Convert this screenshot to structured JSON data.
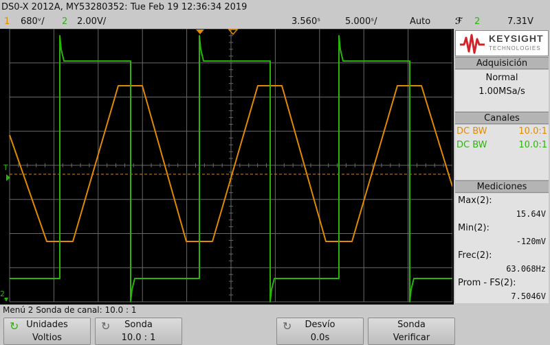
{
  "title_bar": {
    "text": "DS0-X 2012A, MY53280352: Tue Feb 19 12:36:34 2019"
  },
  "scale_bar": {
    "ch1_num": "1",
    "ch1_scale": "680ᵛ/",
    "ch2_num": "2",
    "ch2_scale": "2.00V/",
    "time_delay": "3.560ˢ",
    "time_scale": "5.000ˢ/",
    "trigger_mode": "Auto",
    "trigger_slope": "ℱ",
    "trigger_source": "2",
    "trigger_level": "7.31V"
  },
  "side_panel": {
    "logo_text": "KEYSIGHT",
    "logo_sub": "TECHNOLOGIES",
    "acquisition_head": "Adquisición",
    "acquisition_mode": "Normal",
    "acquisition_rate": "1.00MSa/s",
    "channels_head": "Canales",
    "channels": [
      {
        "label": "DC BW",
        "probe": "10.0:1",
        "color": "#e38a00"
      },
      {
        "label": "DC BW",
        "probe": "10.0:1",
        "color": "#2ab40a"
      }
    ],
    "measurements_head": "Mediciones",
    "measurements": [
      {
        "label": "Max(2):",
        "value": "15.64V"
      },
      {
        "label": "Min(2):",
        "value": "-120mV"
      },
      {
        "label": "Frec(2):",
        "value": "63.068Hz"
      },
      {
        "label": "Prom - FS(2):",
        "value": "7.5046V"
      }
    ]
  },
  "menu_label": "Menú 2 Sonda de canal: 10.0 : 1",
  "softkeys": [
    {
      "line1": "Unidades",
      "line2": "Voltios",
      "icon": "rotate-knob-icon"
    },
    {
      "line1": "Sonda",
      "line2": "10.0 : 1",
      "icon": "rotate-knob-icon"
    },
    {
      "line1": "Desvío",
      "line2": "0.0s",
      "icon": "rotate-knob-icon"
    },
    {
      "line1": "Sonda",
      "line2": "Verificar",
      "icon": ""
    }
  ],
  "colors": {
    "ch1": "#e38a00",
    "ch2": "#2ab40a",
    "grid": "#6a6a6a"
  }
}
